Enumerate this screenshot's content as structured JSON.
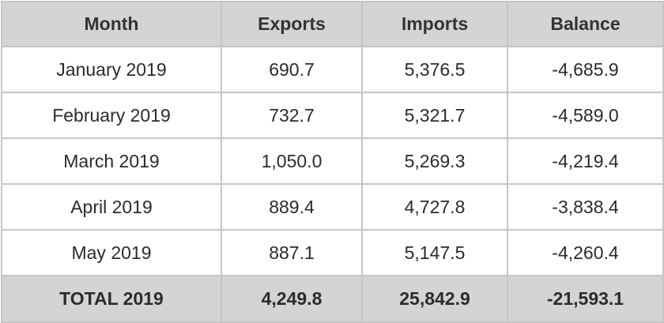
{
  "table": {
    "headers": [
      "Month",
      "Exports",
      "Imports",
      "Balance"
    ],
    "rows": [
      [
        "January 2019",
        "690.7",
        "5,376.5",
        "-4,685.9"
      ],
      [
        "February 2019",
        "732.7",
        "5,321.7",
        "-4,589.0"
      ],
      [
        "March 2019",
        "1,050.0",
        "5,269.3",
        "-4,219.4"
      ],
      [
        "April 2019",
        "889.4",
        "4,727.8",
        "-3,838.4"
      ],
      [
        "May 2019",
        "887.1",
        "5,147.5",
        "-4,260.4"
      ]
    ],
    "total": [
      "TOTAL 2019",
      "4,249.8",
      "25,842.9",
      "-21,593.1"
    ]
  },
  "colors": {
    "header_bg": "#d4d4d4",
    "border": "#c6c6c6",
    "text": "#2b2b2b"
  }
}
